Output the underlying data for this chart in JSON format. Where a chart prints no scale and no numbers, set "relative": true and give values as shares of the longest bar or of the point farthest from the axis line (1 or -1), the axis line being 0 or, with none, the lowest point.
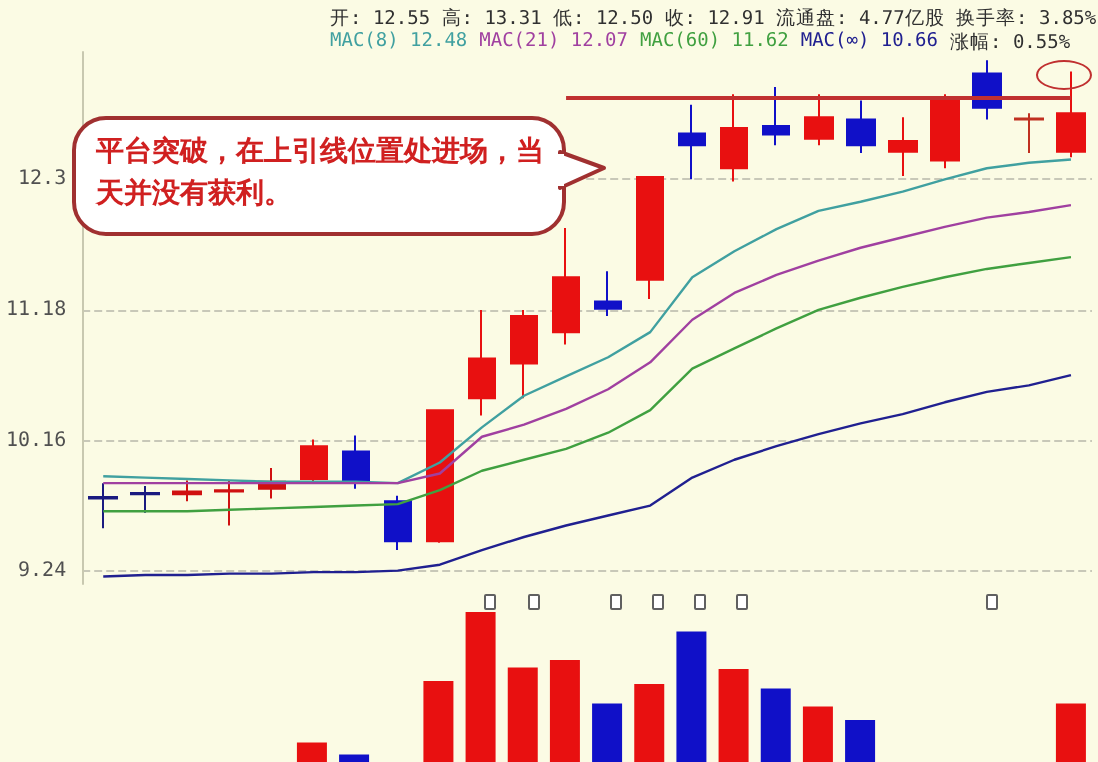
{
  "chart_data": [
    {
      "type": "candlestick",
      "categories": [
        null,
        null,
        null,
        null,
        null,
        null,
        null,
        null,
        null,
        null,
        null,
        null,
        null,
        null,
        null,
        null,
        null,
        null,
        null,
        null,
        null,
        null,
        null,
        null
      ],
      "ohlc": [
        [
          9.75,
          9.85,
          9.53,
          9.74
        ],
        [
          9.78,
          9.83,
          9.64,
          9.77
        ],
        [
          9.77,
          9.87,
          9.72,
          9.79
        ],
        [
          9.79,
          9.87,
          9.55,
          9.8
        ],
        [
          9.81,
          9.96,
          9.74,
          9.86
        ],
        [
          9.88,
          10.17,
          9.85,
          10.12
        ],
        [
          10.08,
          10.2,
          9.81,
          9.86
        ],
        [
          9.72,
          9.76,
          9.38,
          9.44
        ],
        [
          9.44,
          10.39,
          9.43,
          10.39
        ],
        [
          10.48,
          11.18,
          10.35,
          10.79
        ],
        [
          10.75,
          11.18,
          10.48,
          11.13
        ],
        [
          11.0,
          11.87,
          10.9,
          11.45
        ],
        [
          11.25,
          11.5,
          11.13,
          11.19
        ],
        [
          11.43,
          12.32,
          11.27,
          12.32
        ],
        [
          12.72,
          12.99,
          12.3,
          12.61
        ],
        [
          12.4,
          13.09,
          12.28,
          12.77
        ],
        [
          12.79,
          13.16,
          12.61,
          12.71
        ],
        [
          12.67,
          13.09,
          12.61,
          12.87
        ],
        [
          12.85,
          13.03,
          12.54,
          12.61
        ],
        [
          12.55,
          12.87,
          12.33,
          12.65
        ],
        [
          12.47,
          13.09,
          12.4,
          13.05
        ],
        [
          13.29,
          13.42,
          12.85,
          12.96
        ],
        [
          12.85,
          12.91,
          12.54,
          12.86
        ],
        [
          12.55,
          13.31,
          12.5,
          12.91
        ]
      ],
      "colors": [
        "#1a1a80",
        "#1a1a80",
        "#d01010",
        "#d01010",
        "#d01010",
        "#e81010",
        "#1010c8",
        "#1010c8",
        "#e81010",
        "#e81010",
        "#e81010",
        "#e81010",
        "#1010c8",
        "#e81010",
        "#1010c8",
        "#e81010",
        "#1010c8",
        "#e81010",
        "#1010c8",
        "#e81010",
        "#e81010",
        "#1010c8",
        "#c03020",
        "#e81010"
      ],
      "series": [
        {
          "type": "line",
          "name": "MAC(8) 12.48",
          "color": "#40a0a0",
          "values": [
            9.9,
            9.89,
            9.88,
            9.87,
            9.86,
            9.86,
            9.86,
            9.85,
            10.0,
            10.26,
            10.5,
            10.65,
            10.8,
            11.0,
            11.45,
            11.67,
            11.86,
            12.02,
            12.1,
            12.19,
            12.3,
            12.4,
            12.45,
            12.48
          ]
        },
        {
          "type": "line",
          "name": "MAC(21) 12.07",
          "color": "#a040a0",
          "values": [
            9.85,
            9.85,
            9.85,
            9.85,
            9.85,
            9.85,
            9.85,
            9.85,
            9.92,
            10.19,
            10.28,
            10.4,
            10.55,
            10.76,
            11.1,
            11.32,
            11.47,
            11.59,
            11.7,
            11.79,
            11.88,
            11.96,
            12.01,
            12.07
          ]
        },
        {
          "type": "line",
          "name": "MAC(60) 11.62",
          "color": "#40a040",
          "values": [
            9.65,
            9.65,
            9.65,
            9.66,
            9.67,
            9.68,
            9.69,
            9.7,
            9.8,
            9.94,
            10.02,
            10.1,
            10.22,
            10.39,
            10.71,
            10.87,
            11.03,
            11.18,
            11.28,
            11.37,
            11.45,
            11.52,
            11.57,
            11.62
          ]
        },
        {
          "type": "line",
          "name": "MAC(∞) 10.66",
          "color": "#202090",
          "values": [
            9.2,
            9.21,
            9.21,
            9.22,
            9.22,
            9.23,
            9.23,
            9.24,
            9.28,
            9.38,
            9.47,
            9.55,
            9.62,
            9.69,
            9.89,
            10.02,
            10.12,
            10.21,
            10.29,
            10.36,
            10.45,
            10.53,
            10.58,
            10.66
          ]
        }
      ],
      "ylim": [
        9.15,
        13.5
      ],
      "yticks": [
        9.24,
        10.16,
        11.18,
        12.3
      ],
      "log": "y",
      "grid": "y",
      "tick_labels": "y",
      "legend": "top left",
      "marker": "none",
      "ref_lines": [
        {
          "axis": "y",
          "value": 13.05,
          "color": "#c03030"
        }
      ],
      "annotations": [
        "开: 12.55 高: 13.31 低: 12.50 收: 12.91 流通盘: 4.77亿股 换手率: 3.85%",
        "涨幅: 0.55%",
        "平台突破，在上引线位置处进场，当天并没有获利。"
      ]
    },
    {
      "type": "bar",
      "relative": true,
      "categories": [
        null,
        null,
        null,
        null,
        null,
        null,
        null,
        null,
        null,
        null,
        null,
        null,
        null,
        null,
        null,
        null,
        null,
        null,
        null,
        null,
        null,
        null,
        null,
        null
      ],
      "values": [
        null,
        null,
        null,
        null,
        null,
        0.13,
        0.05,
        null,
        0.54,
        1,
        0.63,
        0.68,
        0.39,
        0.52,
        0.87,
        0.62,
        0.49,
        0.37,
        0.28,
        null,
        null,
        null,
        null,
        0.39
      ],
      "colors": [
        "#e81010",
        "#e81010",
        "#e81010",
        "#e81010",
        "#e81010",
        "#e81010",
        "#1010c8",
        "#1010c8",
        "#e81010",
        "#e81010",
        "#e81010",
        "#e81010",
        "#1010c8",
        "#e81010",
        "#1010c8",
        "#e81010",
        "#1010c8",
        "#e81010",
        "#1010c8",
        "#e81010",
        "#e81010",
        "#1010c8",
        "#e81010",
        "#e81010"
      ],
      "tick_labels": false
    }
  ]
}
